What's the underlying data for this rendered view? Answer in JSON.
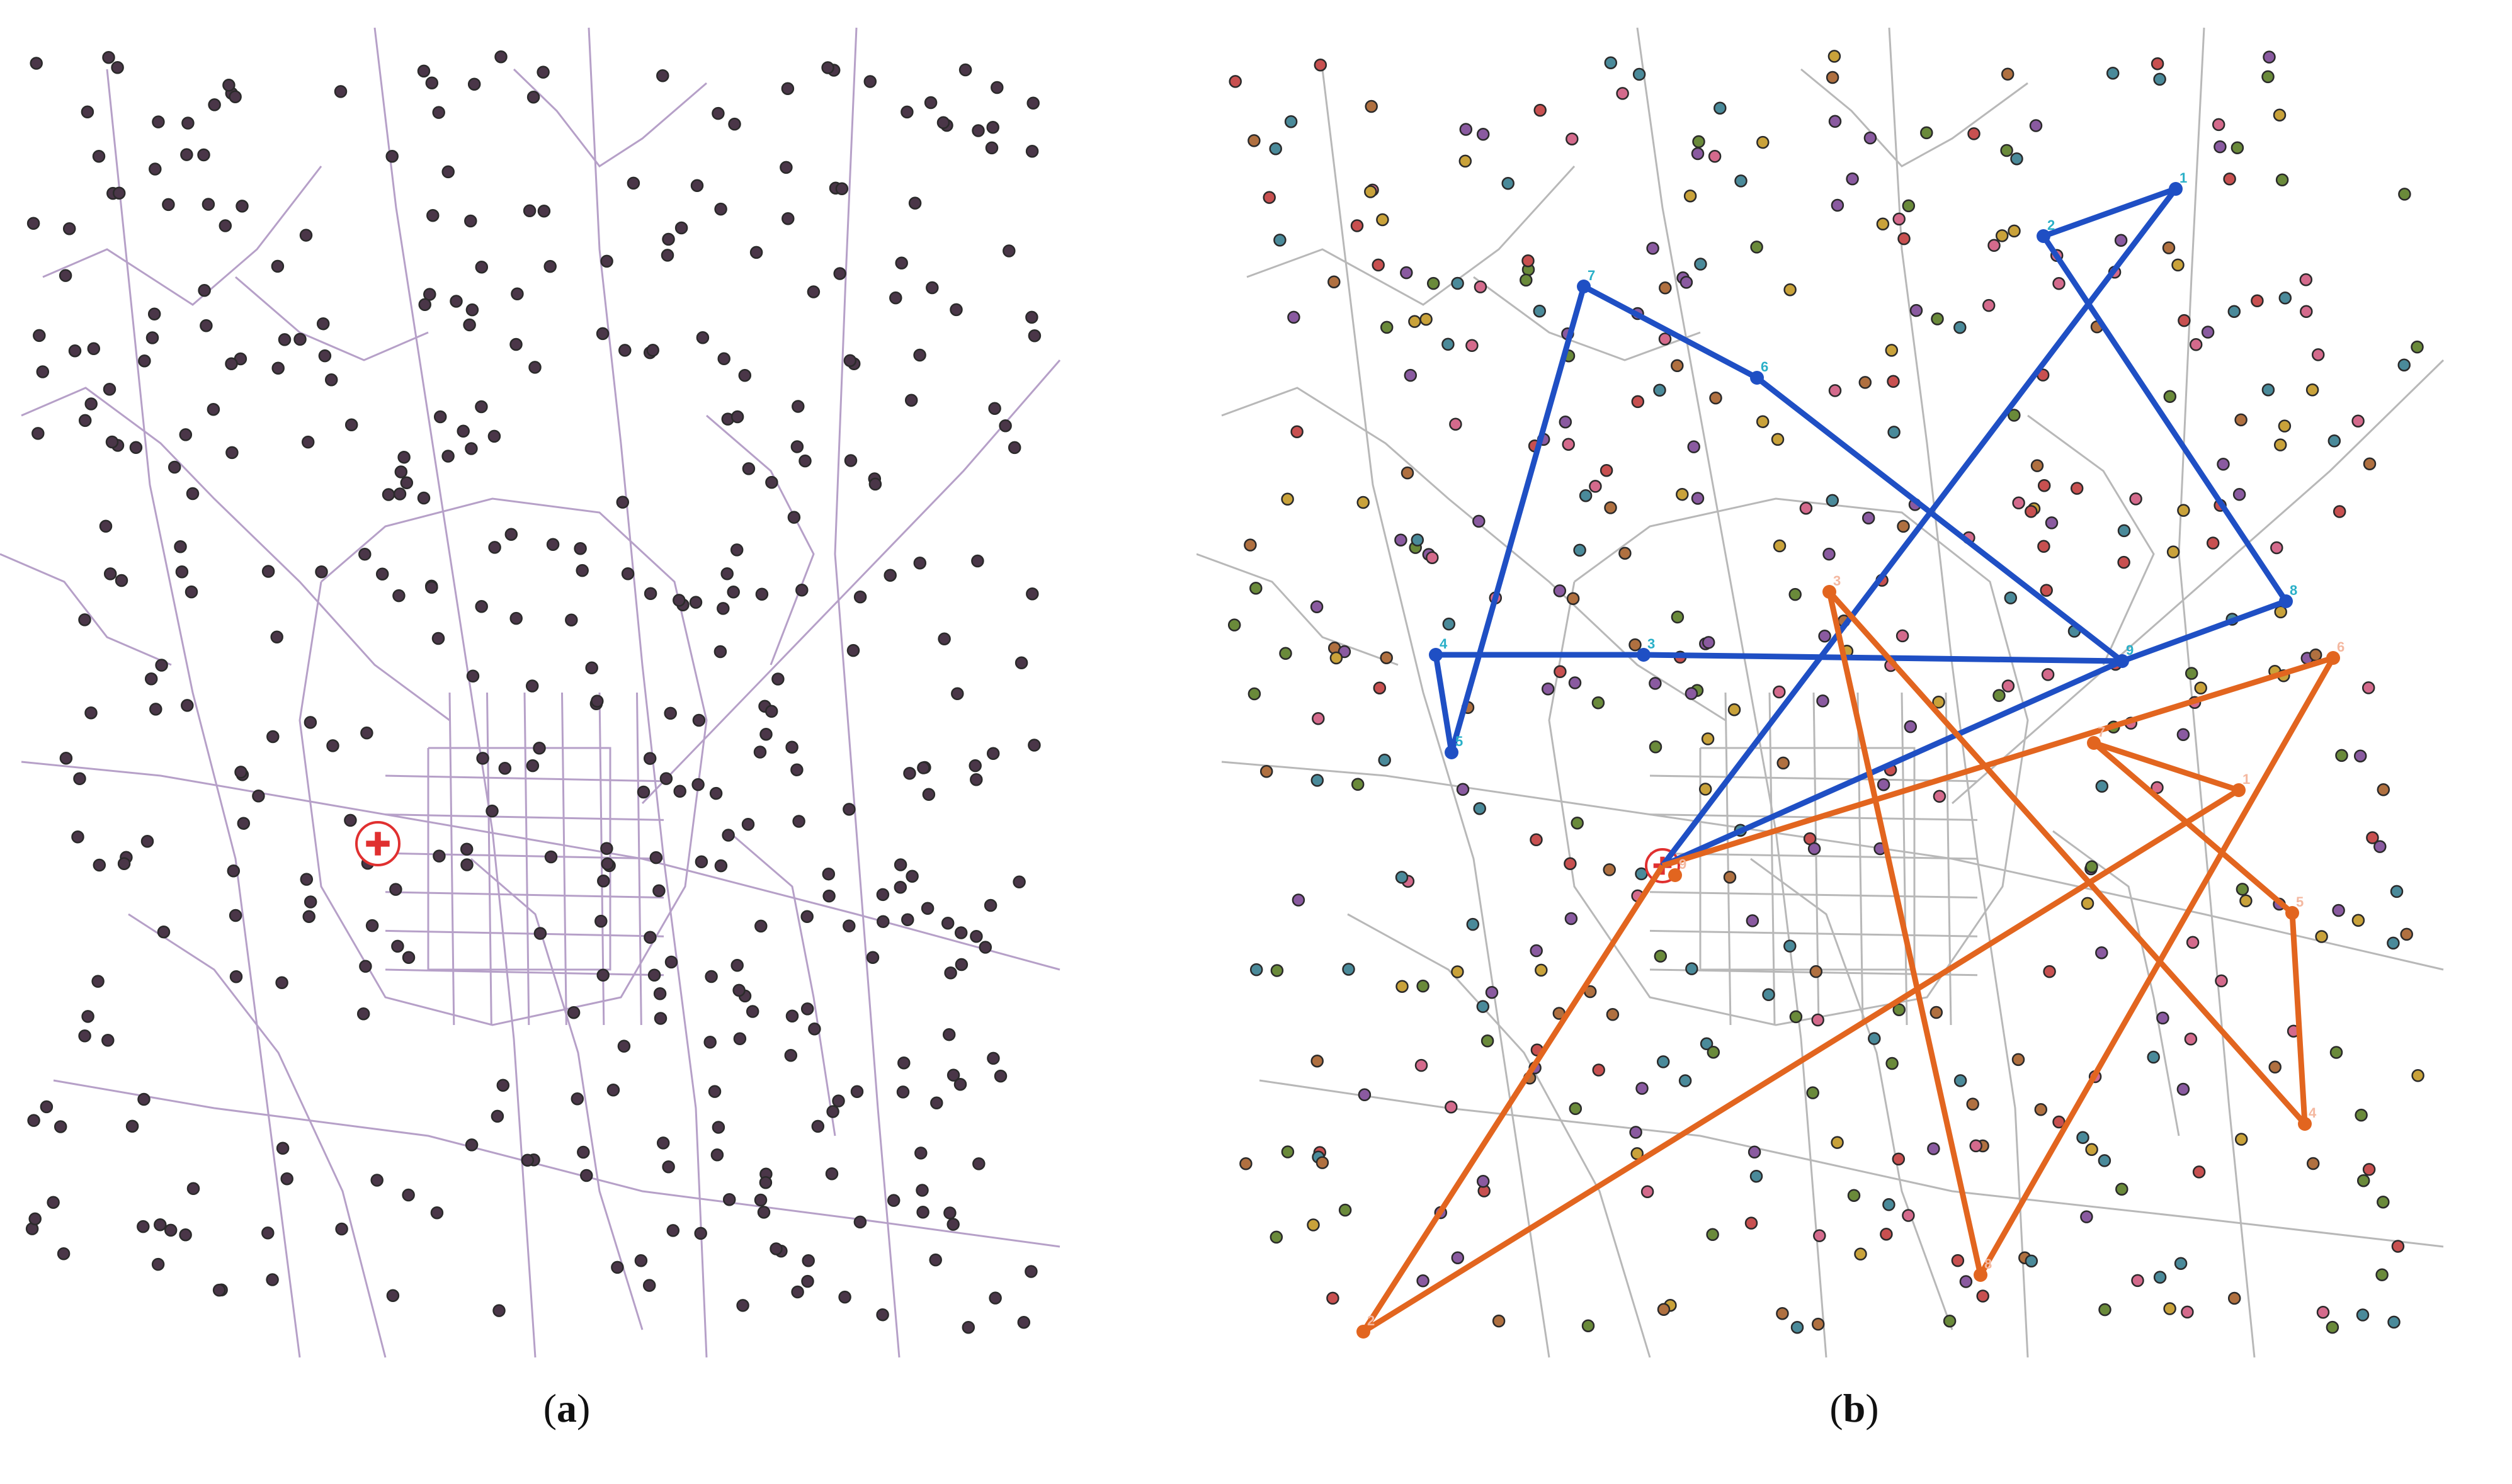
{
  "figure": {
    "panels": [
      {
        "id": "a",
        "caption_prefix": "(",
        "caption_letter": "a",
        "caption_suffix": ")"
      },
      {
        "id": "b",
        "caption_prefix": "(",
        "caption_letter": "b",
        "caption_suffix": ")"
      }
    ]
  },
  "colors": {
    "road_a": "#b6a0c8",
    "road_b": "#b8b8b8",
    "point_a": "#4a3648",
    "depot": "#e03030",
    "route_blue": "#1f4fc4",
    "route_orange": "#e2651f",
    "label_blue": "#2ab0c8",
    "label_orange": "#f4b8a0",
    "point_palette": [
      "#c85050",
      "#d46a8c",
      "#6a8a3a",
      "#c9a23a",
      "#8a5aa0",
      "#4a8a9a",
      "#b07040"
    ]
  },
  "routes": {
    "blue": {
      "name": "",
      "stop_labels": [
        "1",
        "2",
        "3",
        "4",
        "5",
        "6",
        "7",
        "8",
        "9"
      ]
    },
    "orange": {
      "name": "",
      "stop_labels": [
        "1",
        "2",
        "3",
        "4",
        "5",
        "6",
        "7",
        "8",
        "9"
      ]
    }
  },
  "icons": {
    "depot": "hospital-cross-icon"
  }
}
